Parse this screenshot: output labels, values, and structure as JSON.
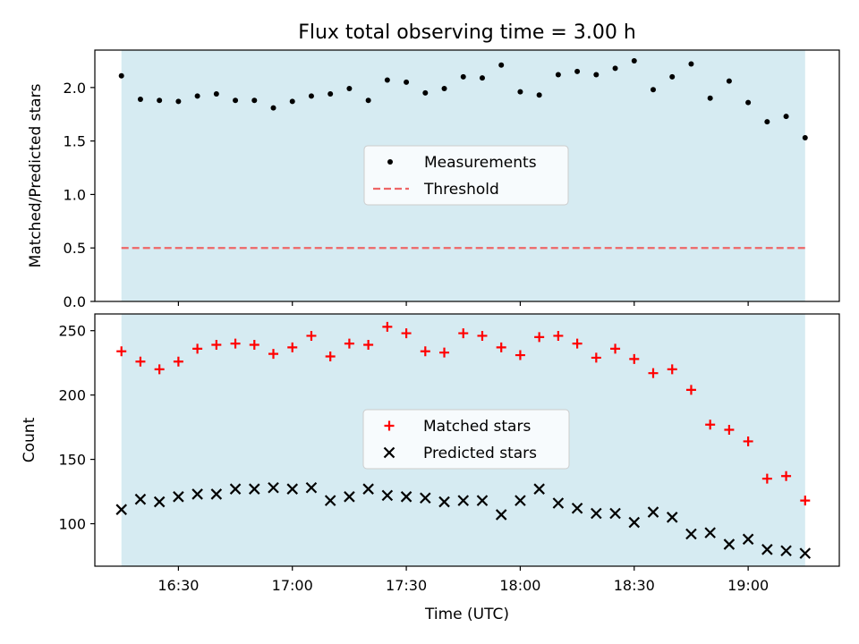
{
  "title": "Flux total observing time = 3.00 h",
  "colors": {
    "background": "#ffffff",
    "shade": "#add8e6",
    "measurement": "#000000",
    "threshold": "#ee6666",
    "matched": "#ff0000",
    "predicted": "#000000"
  },
  "chart_data": [
    {
      "type": "scatter",
      "ylabel": "Matched/Predicted stars",
      "xlim": [
        "16:08",
        "19:24"
      ],
      "ylim": [
        0,
        2.35
      ],
      "yticks": [
        0.0,
        0.5,
        1.0,
        1.5,
        2.0
      ],
      "ytick_labels": [
        "0.0",
        "0.5",
        "1.0",
        "1.5",
        "2.0"
      ],
      "shaded_span": [
        "16:15",
        "19:15"
      ],
      "legend_position": "center",
      "series": [
        {
          "name": "Measurements",
          "kind": "scatter",
          "marker": "dot",
          "x": [
            "16:15",
            "16:20",
            "16:25",
            "16:30",
            "16:35",
            "16:40",
            "16:45",
            "16:50",
            "16:55",
            "17:00",
            "17:05",
            "17:10",
            "17:15",
            "17:20",
            "17:25",
            "17:30",
            "17:35",
            "17:40",
            "17:45",
            "17:50",
            "17:55",
            "18:00",
            "18:05",
            "18:10",
            "18:15",
            "18:20",
            "18:25",
            "18:30",
            "18:35",
            "18:40",
            "18:45",
            "18:50",
            "18:55",
            "19:00",
            "19:05",
            "19:10",
            "19:15"
          ],
          "y": [
            2.11,
            1.89,
            1.88,
            1.87,
            1.92,
            1.94,
            1.88,
            1.88,
            1.81,
            1.87,
            1.92,
            1.94,
            1.99,
            1.88,
            2.07,
            2.05,
            1.95,
            1.99,
            2.1,
            2.09,
            2.21,
            1.96,
            1.93,
            2.12,
            2.15,
            2.12,
            2.18,
            2.25,
            1.98,
            2.1,
            2.22,
            1.9,
            2.06,
            1.86,
            1.68,
            1.73,
            1.53
          ]
        },
        {
          "name": "Threshold",
          "kind": "line",
          "style": "dashed",
          "x": [
            "16:15",
            "19:15"
          ],
          "y": [
            0.5,
            0.5
          ]
        }
      ]
    },
    {
      "type": "scatter",
      "xlabel": "Time (UTC)",
      "ylabel": "Count",
      "xlim": [
        "16:08",
        "19:24"
      ],
      "ylim": [
        67,
        263
      ],
      "yticks": [
        100,
        150,
        200,
        250
      ],
      "ytick_labels": [
        "100",
        "150",
        "200",
        "250"
      ],
      "xticks": [
        "16:30",
        "17:00",
        "17:30",
        "18:00",
        "18:30",
        "19:00"
      ],
      "xtick_labels": [
        "16:30",
        "17:00",
        "17:30",
        "18:00",
        "18:30",
        "19:00"
      ],
      "shaded_span": [
        "16:15",
        "19:15"
      ],
      "legend_position": "center",
      "series": [
        {
          "name": "Matched stars",
          "kind": "scatter",
          "marker": "plus",
          "x": [
            "16:15",
            "16:20",
            "16:25",
            "16:30",
            "16:35",
            "16:40",
            "16:45",
            "16:50",
            "16:55",
            "17:00",
            "17:05",
            "17:10",
            "17:15",
            "17:20",
            "17:25",
            "17:30",
            "17:35",
            "17:40",
            "17:45",
            "17:50",
            "17:55",
            "18:00",
            "18:05",
            "18:10",
            "18:15",
            "18:20",
            "18:25",
            "18:30",
            "18:35",
            "18:40",
            "18:45",
            "18:50",
            "18:55",
            "19:00",
            "19:05",
            "19:10",
            "19:15"
          ],
          "y": [
            234,
            226,
            220,
            226,
            236,
            239,
            240,
            239,
            232,
            237,
            246,
            230,
            240,
            239,
            253,
            248,
            234,
            233,
            248,
            246,
            237,
            231,
            245,
            246,
            240,
            229,
            236,
            228,
            217,
            220,
            204,
            177,
            173,
            164,
            135,
            137,
            118
          ]
        },
        {
          "name": "Predicted stars",
          "kind": "scatter",
          "marker": "x",
          "x": [
            "16:15",
            "16:20",
            "16:25",
            "16:30",
            "16:35",
            "16:40",
            "16:45",
            "16:50",
            "16:55",
            "17:00",
            "17:05",
            "17:10",
            "17:15",
            "17:20",
            "17:25",
            "17:30",
            "17:35",
            "17:40",
            "17:45",
            "17:50",
            "17:55",
            "18:00",
            "18:05",
            "18:10",
            "18:15",
            "18:20",
            "18:25",
            "18:30",
            "18:35",
            "18:40",
            "18:45",
            "18:50",
            "18:55",
            "19:00",
            "19:05",
            "19:10",
            "19:15"
          ],
          "y": [
            111,
            119,
            117,
            121,
            123,
            123,
            127,
            127,
            128,
            127,
            128,
            118,
            121,
            127,
            122,
            121,
            120,
            117,
            118,
            118,
            107,
            118,
            127,
            116,
            112,
            108,
            108,
            101,
            109,
            105,
            92,
            93,
            84,
            88,
            80,
            79,
            77
          ]
        }
      ]
    }
  ]
}
